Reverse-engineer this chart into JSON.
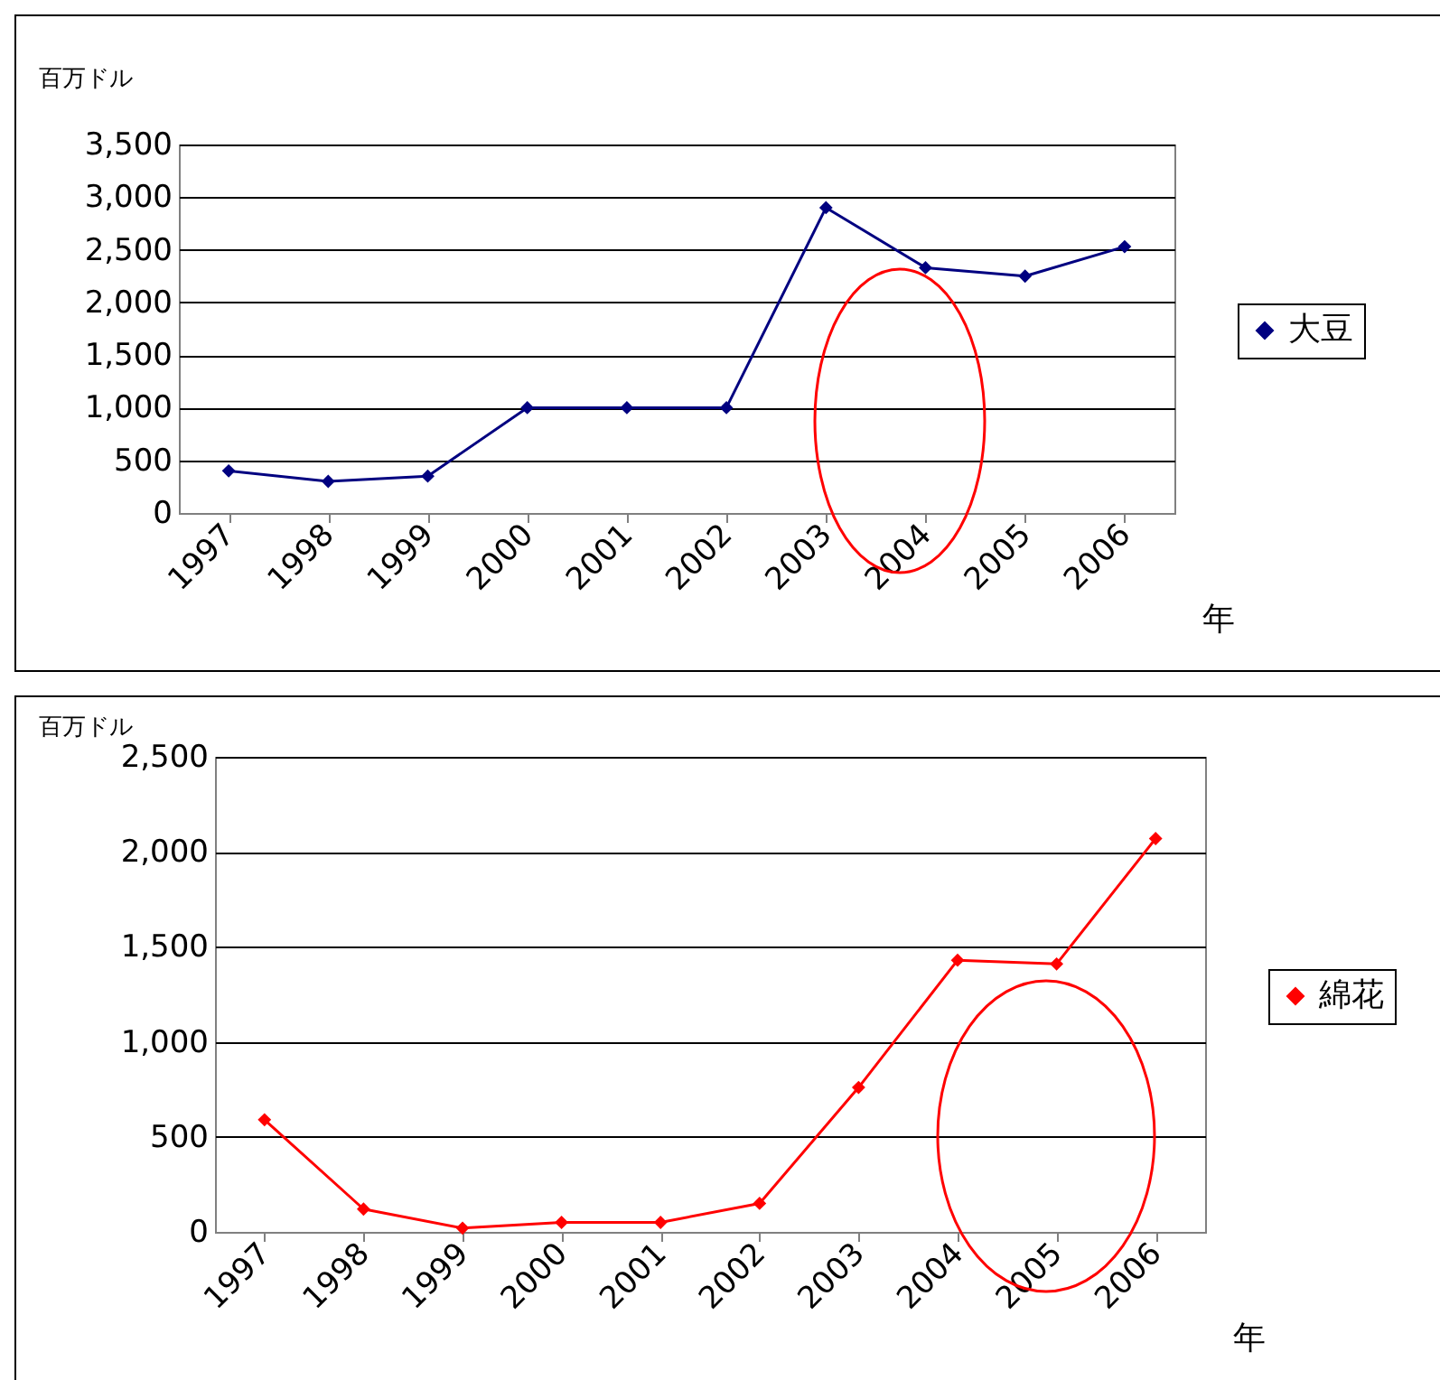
{
  "chart_data": [
    {
      "type": "line",
      "ylabel": "百万ドル",
      "xlabel": "年",
      "categories": [
        "1997",
        "1998",
        "1999",
        "2000",
        "2001",
        "2002",
        "2003",
        "2004",
        "2005",
        "2006"
      ],
      "series": [
        {
          "name": "大豆",
          "color": "#000080",
          "values": [
            400,
            300,
            350,
            1000,
            1000,
            1000,
            2900,
            2330,
            2250,
            2530
          ]
        }
      ],
      "ylim": [
        0,
        3500
      ],
      "yticks": [
        0,
        {
          "value": 500,
          "label": "500"
        },
        {
          "value": 1000,
          "label": "1,000"
        },
        {
          "value": 1500,
          "label": "1,500"
        },
        {
          "value": 2000,
          "label": "2,000"
        },
        {
          "value": 2500,
          "label": "2,500"
        },
        {
          "value": 3000,
          "label": "3,000"
        },
        {
          "value": 3500,
          "label": "3,500"
        }
      ],
      "grid": "y",
      "legend": "right",
      "marker": "diamond"
    },
    {
      "type": "line",
      "ylabel": "百万ドル",
      "xlabel": "年",
      "categories": [
        "1997",
        "1998",
        "1999",
        "2000",
        "2001",
        "2002",
        "2003",
        "2004",
        "2005",
        "2006"
      ],
      "series": [
        {
          "name": "綿花",
          "color": "#ff0000",
          "values": [
            590,
            120,
            20,
            50,
            50,
            150,
            760,
            1430,
            1410,
            2070
          ]
        }
      ],
      "ylim": [
        0,
        2500
      ],
      "yticks": [
        0,
        {
          "value": 500,
          "label": "500"
        },
        {
          "value": 1000,
          "label": "1,000"
        },
        {
          "value": 1500,
          "label": "1,500"
        },
        {
          "value": 2000,
          "label": "2,000"
        },
        {
          "value": 2500,
          "label": "2,500"
        }
      ],
      "grid": "y",
      "legend": "right",
      "marker": "diamond"
    }
  ]
}
